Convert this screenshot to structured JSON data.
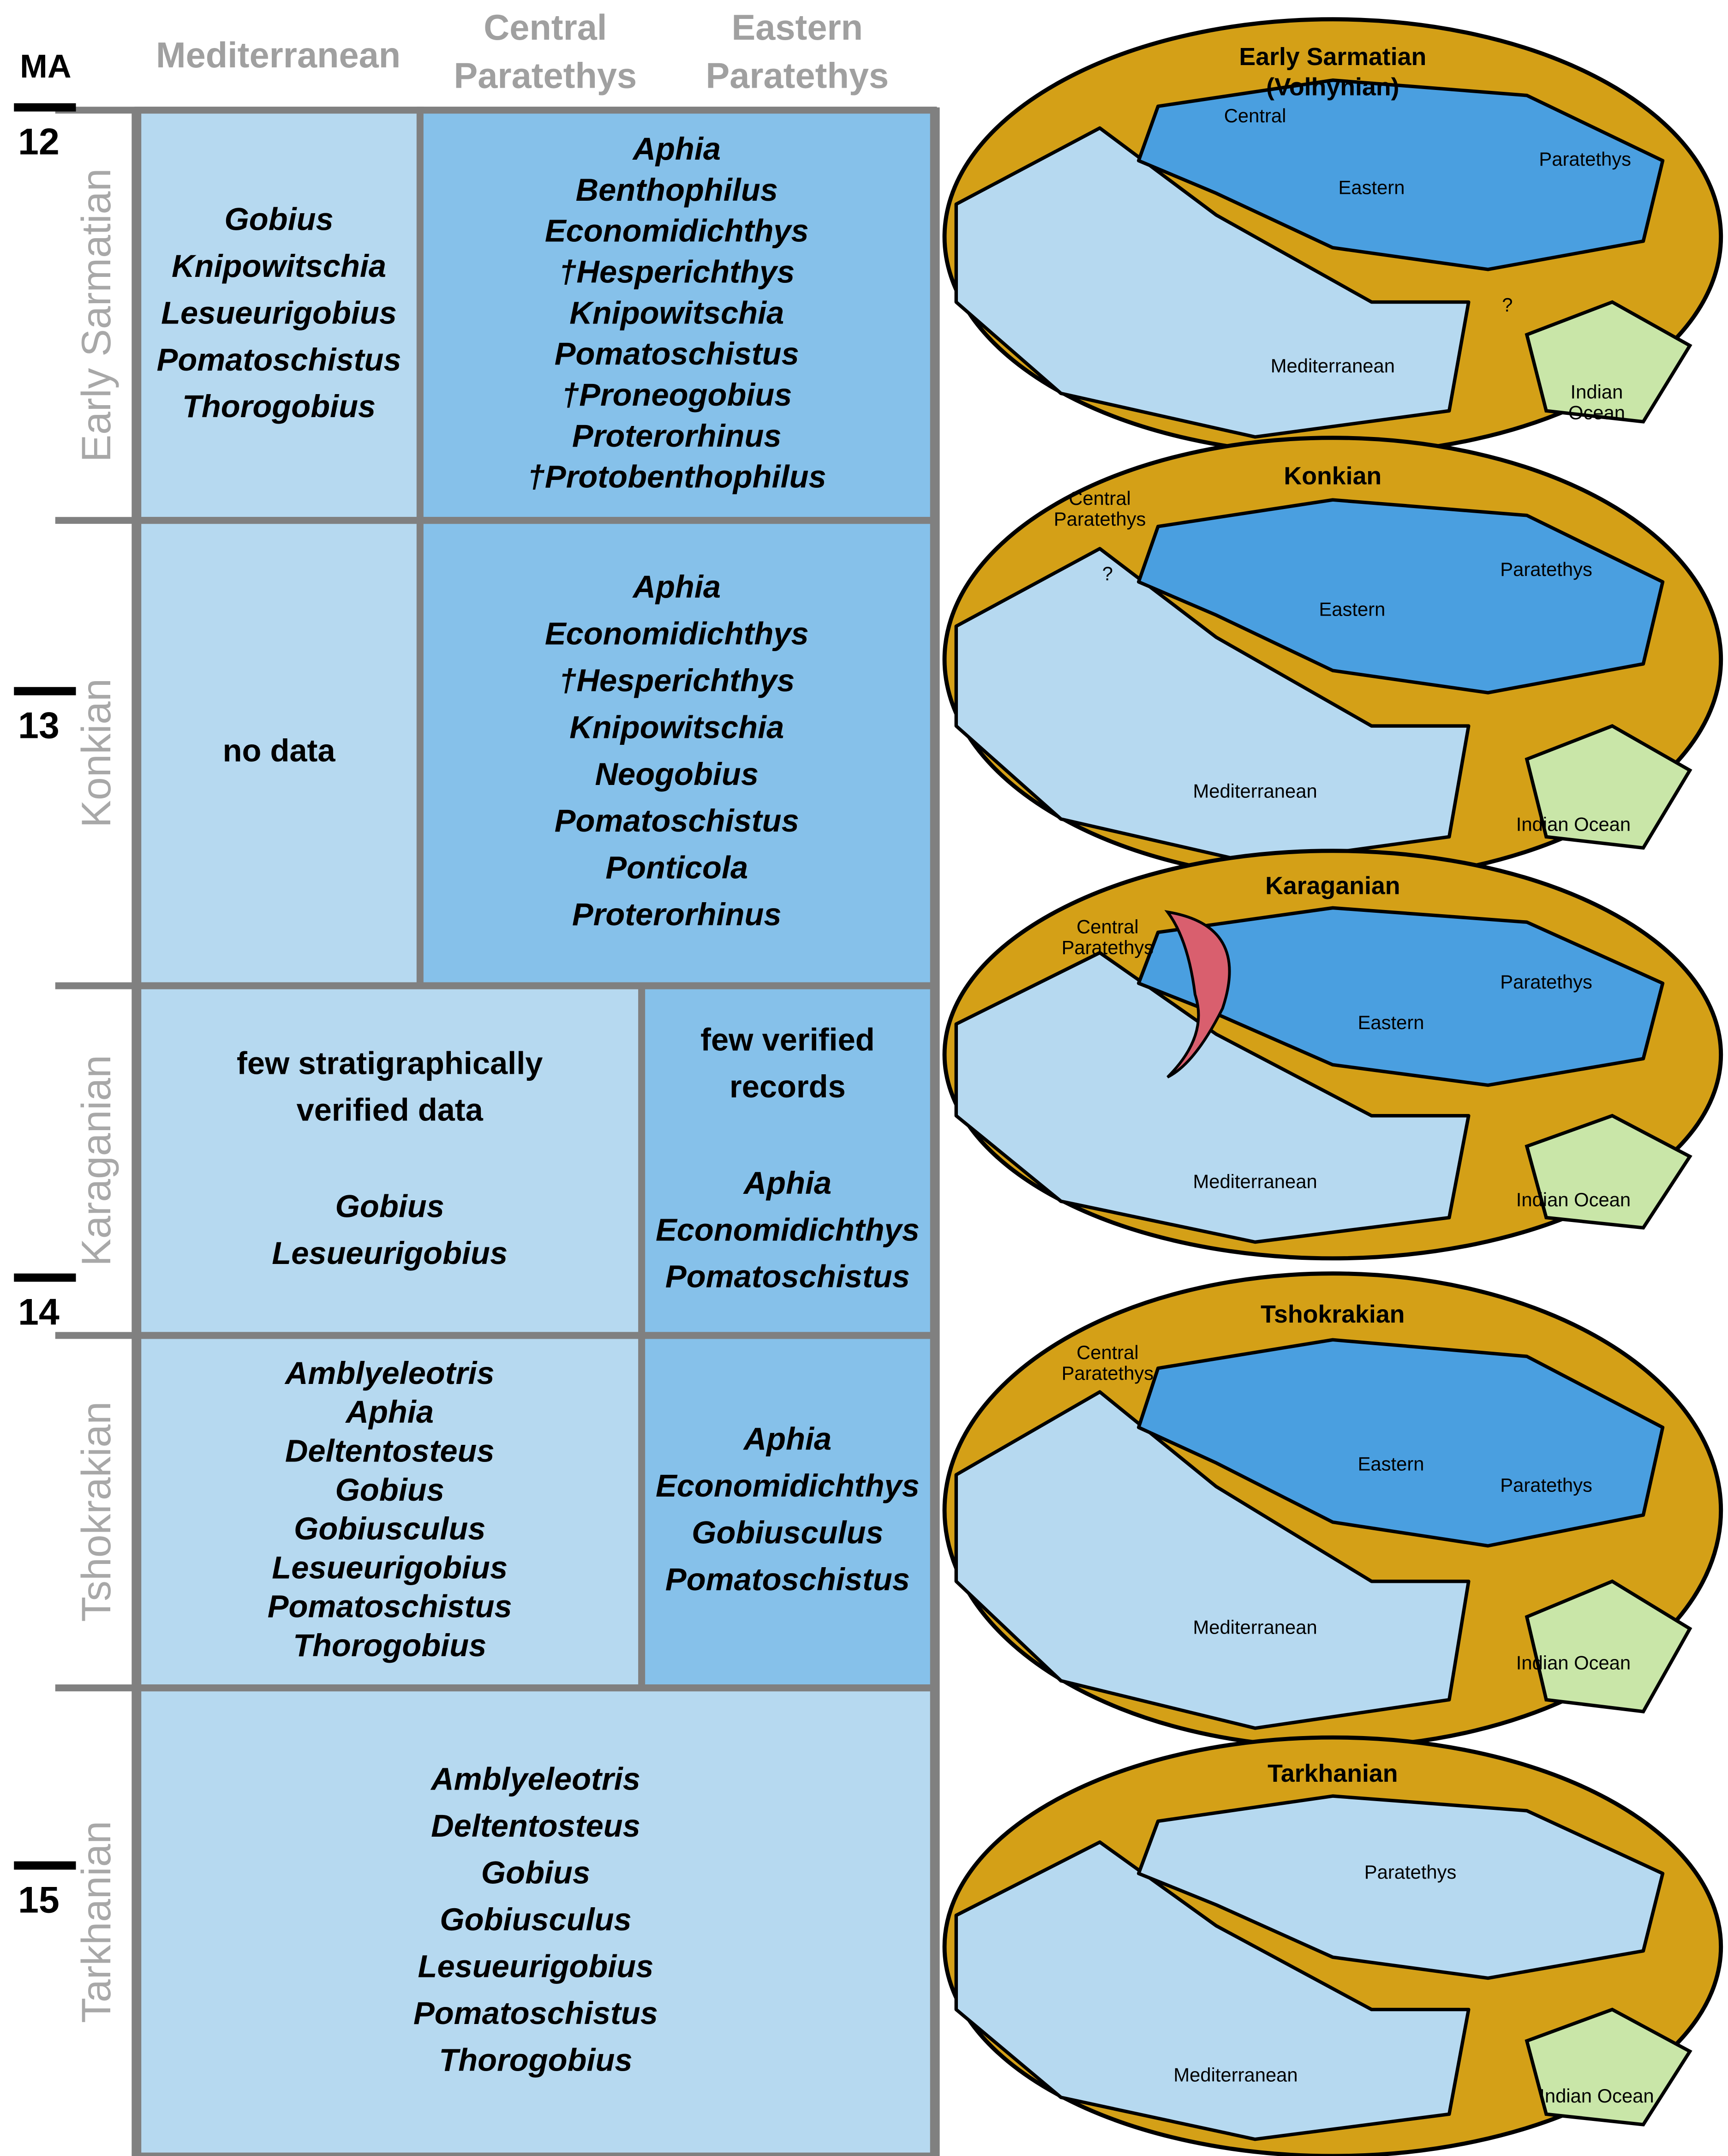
{
  "header": {
    "ma": "MA",
    "columns": [
      [
        "Mediterranean"
      ],
      [
        "Central",
        "Paratethys"
      ],
      [
        "Eastern",
        "Paratethys"
      ]
    ]
  },
  "ma_ticks": [
    "12",
    "13",
    "14",
    "15"
  ],
  "stages": [
    {
      "name": "Early Sarmatian",
      "cells": [
        {
          "notes": [],
          "taxa": [
            "Gobius",
            "Knipowitschia",
            "Lesueurigobius",
            "Pomatoschistus",
            "Thorogobius"
          ]
        },
        {
          "notes": [],
          "taxa": [
            "Aphia",
            "Benthophilus",
            "Economidichthys",
            "†Hesperichthys",
            "Knipowitschia",
            "Pomatoschistus",
            "†Proneogobius",
            "Proterorhinus",
            "†Protobenthophilus"
          ]
        }
      ]
    },
    {
      "name": "Konkian",
      "cells": [
        {
          "notes": [
            "no data"
          ],
          "taxa": []
        },
        {
          "notes": [],
          "taxa": [
            "Aphia",
            "Economidichthys",
            "†Hesperichthys",
            "Knipowitschia",
            "Neogobius",
            "Pomatoschistus",
            "Ponticola",
            "Proterorhinus"
          ]
        }
      ]
    },
    {
      "name": "Karaganian",
      "cells": [
        {
          "notes": [
            "few stratigraphically",
            "verified data"
          ],
          "taxa": [
            "Gobius",
            "Lesueurigobius"
          ]
        },
        {
          "notes": [
            "few verified",
            "records"
          ],
          "taxa": [
            "Aphia",
            "Economidichthys",
            "Pomatoschistus"
          ]
        }
      ]
    },
    {
      "name": "Tshokrakian",
      "cells": [
        {
          "notes": [],
          "taxa": [
            "Amblyeleotris",
            "Aphia",
            "Deltentosteus",
            "Gobius",
            "Gobiusculus",
            "Lesueurigobius",
            "Pomatoschistus",
            "Thorogobius"
          ]
        },
        {
          "notes": [],
          "taxa": [
            "Aphia",
            "Economidichthys",
            "Gobiusculus",
            "Pomatoschistus"
          ]
        }
      ]
    },
    {
      "name": "Tarkhanian",
      "cells": [
        {
          "notes": [],
          "taxa": [
            "Amblyeleotris",
            "Deltentosteus",
            "Gobius",
            "Gobiusculus",
            "Lesueurigobius",
            "Pomatoschistus",
            "Thorogobius"
          ]
        }
      ]
    }
  ],
  "maps": [
    {
      "title": [
        "Early Sarmatian",
        "(Volhynian)"
      ],
      "labels": [
        "Central",
        "Eastern",
        "Paratethys",
        "Mediterranean",
        [
          "Indian",
          "Ocean"
        ],
        "?"
      ]
    },
    {
      "title": [
        "Konkian"
      ],
      "labels": [
        [
          "Central",
          "Paratethys"
        ],
        "Paratethys",
        "Eastern",
        "Mediterranean",
        "Indian Ocean",
        "?"
      ]
    },
    {
      "title": [
        "Karaganian"
      ],
      "labels": [
        [
          "Central",
          "Paratethys"
        ],
        "Paratethys",
        "Eastern",
        "Mediterranean",
        "Indian Ocean"
      ]
    },
    {
      "title": [
        "Tshokrakian"
      ],
      "labels": [
        [
          "Central",
          "Paratethys"
        ],
        "Eastern",
        "Paratethys",
        "Mediterranean",
        "Indian Ocean"
      ]
    },
    {
      "title": [
        "Tarkhanian"
      ],
      "labels": [
        "Paratethys",
        "Mediterranean",
        "Indian Ocean"
      ]
    }
  ]
}
